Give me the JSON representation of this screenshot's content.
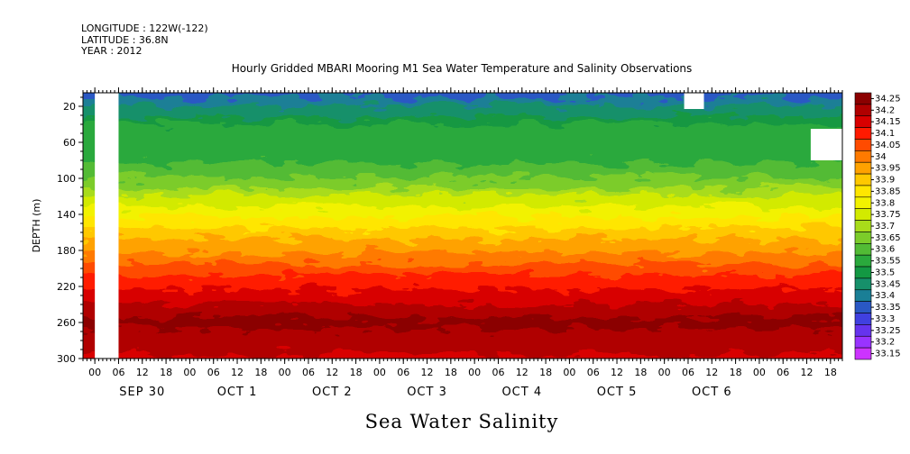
{
  "header": {
    "longitude": "LONGITUDE : 122W(-122)",
    "latitude": "LATITUDE : 36.8N",
    "year": "YEAR : 2012"
  },
  "chart_data": {
    "type": "heatmap",
    "title": "Hourly Gridded MBARI Mooring M1 Sea Water Temperature and Salinity Observations",
    "bottom_title": "Sea Water Salinity",
    "ylabel": "DEPTH (m)",
    "y_ticks": [
      20,
      60,
      100,
      140,
      180,
      220,
      260,
      300
    ],
    "ylim": [
      300,
      5
    ],
    "x_hour_ticks": [
      "00",
      "06",
      "12",
      "18",
      "00",
      "06",
      "12",
      "18",
      "00",
      "06",
      "12",
      "18",
      "00",
      "06",
      "12",
      "18",
      "00",
      "06",
      "12",
      "18",
      "00",
      "06",
      "12",
      "18",
      "00",
      "06",
      "12",
      "18",
      "00",
      "06",
      "12",
      "18"
    ],
    "x_day_labels": [
      "SEP 30",
      "OCT  1",
      "OCT  2",
      "OCT  3",
      "OCT  4",
      "OCT  5",
      "OCT  6"
    ],
    "colorbar": {
      "levels": [
        "34.25",
        "34.2",
        "34.15",
        "34.1",
        "34.05",
        "34",
        "33.95",
        "33.9",
        "33.85",
        "33.8",
        "33.75",
        "33.7",
        "33.65",
        "33.6",
        "33.55",
        "33.5",
        "33.45",
        "33.4",
        "33.35",
        "33.3",
        "33.25",
        "33.2",
        "33.15"
      ],
      "colors": [
        "#8b0000",
        "#b00000",
        "#d80000",
        "#ff1a00",
        "#ff4b00",
        "#ff7a00",
        "#ffa200",
        "#ffc800",
        "#ffe600",
        "#f2f200",
        "#d2ea00",
        "#a8dc1a",
        "#7ccc2a",
        "#52bb35",
        "#2aa93c",
        "#139843",
        "#16906a",
        "#1a7f96",
        "#2a58c4",
        "#4040e0",
        "#6633ee",
        "#9933ff",
        "#cc33ff"
      ]
    },
    "depth_profile": [
      {
        "depth": 5,
        "salinity": 33.33
      },
      {
        "depth": 20,
        "salinity": 33.4
      },
      {
        "depth": 40,
        "salinity": 33.5
      },
      {
        "depth": 70,
        "salinity": 33.52
      },
      {
        "depth": 100,
        "salinity": 33.6
      },
      {
        "depth": 130,
        "salinity": 33.75
      },
      {
        "depth": 160,
        "salinity": 33.87
      },
      {
        "depth": 190,
        "salinity": 33.97
      },
      {
        "depth": 215,
        "salinity": 34.08
      },
      {
        "depth": 240,
        "salinity": 34.15
      },
      {
        "depth": 260,
        "salinity": 34.21
      },
      {
        "depth": 285,
        "salinity": 34.17
      },
      {
        "depth": 300,
        "salinity": 34.14
      }
    ],
    "missing_data": [
      {
        "start_hour": 0,
        "end_hour": 6,
        "depth_top": 5,
        "depth_bottom": 300
      },
      {
        "start_hour": 149,
        "end_hour": 154,
        "depth_top": 5,
        "depth_bottom": 23
      },
      {
        "start_hour": 181,
        "end_hour": 192,
        "depth_top": 45,
        "depth_bottom": 80
      }
    ]
  }
}
